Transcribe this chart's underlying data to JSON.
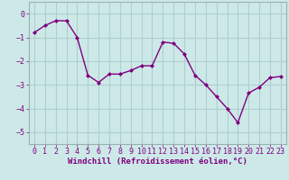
{
  "x": [
    0,
    1,
    2,
    3,
    4,
    5,
    6,
    7,
    8,
    9,
    10,
    11,
    12,
    13,
    14,
    15,
    16,
    17,
    18,
    19,
    20,
    21,
    22,
    23
  ],
  "y": [
    -0.8,
    -0.5,
    -0.3,
    -0.3,
    -1.0,
    -2.6,
    -2.9,
    -2.55,
    -2.55,
    -2.4,
    -2.2,
    -2.2,
    -1.2,
    -1.25,
    -1.7,
    -2.6,
    -3.0,
    -3.5,
    -4.0,
    -4.6,
    -3.35,
    -3.1,
    -2.7,
    -2.65
  ],
  "line_color": "#800080",
  "marker": "D",
  "marker_size": 2.0,
  "bg_color": "#cce9e8",
  "grid_color": "#b0cece",
  "xlabel": "Windchill (Refroidissement éolien,°C)",
  "xlim": [
    -0.5,
    23.5
  ],
  "ylim": [
    -5.5,
    0.5
  ],
  "yticks": [
    0,
    -1,
    -2,
    -3,
    -4,
    -5
  ],
  "xticks": [
    0,
    1,
    2,
    3,
    4,
    5,
    6,
    7,
    8,
    9,
    10,
    11,
    12,
    13,
    14,
    15,
    16,
    17,
    18,
    19,
    20,
    21,
    22,
    23
  ],
  "xlabel_fontsize": 6.5,
  "tick_fontsize": 6.0,
  "line_width": 1.0,
  "spine_color": "#9ab0b0",
  "label_color": "#800080"
}
